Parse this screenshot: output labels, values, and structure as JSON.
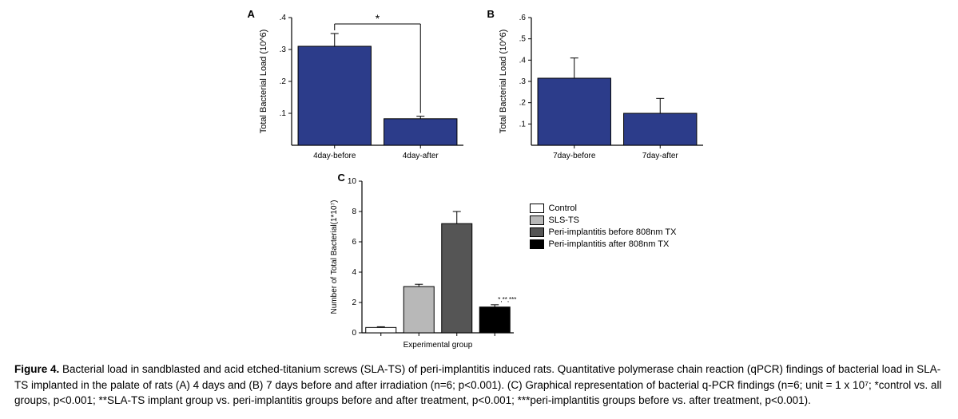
{
  "panelA": {
    "letter": "A",
    "type": "bar",
    "ylabel": "Total Bacterial Load (10^6)",
    "ylim": [
      0,
      0.4
    ],
    "yticks": [
      0.1,
      0.2,
      0.3,
      0.4
    ],
    "ytick_labels": [
      ".1",
      ".2",
      ".3",
      ".4"
    ],
    "categories": [
      "4day-before",
      "4day-after"
    ],
    "values": [
      0.31,
      0.083
    ],
    "errors": [
      0.04,
      0.008
    ],
    "bar_color": "#2c3c8a",
    "bar_stroke": "#000000",
    "axis_color": "#000000",
    "label_fontsize": 11,
    "tick_fontsize": 10,
    "sig_marker": "*",
    "sig_between_indices": [
      0,
      1
    ]
  },
  "panelB": {
    "letter": "B",
    "type": "bar",
    "ylabel": "Total Bacterial Load (10^6)",
    "ylim": [
      0,
      0.6
    ],
    "yticks": [
      0.1,
      0.2,
      0.3,
      0.4,
      0.5,
      0.6
    ],
    "ytick_labels": [
      ".1",
      ".2",
      ".3",
      ".4",
      ".5",
      ".6"
    ],
    "categories": [
      "7day-before",
      "7day-after"
    ],
    "values": [
      0.315,
      0.15
    ],
    "errors": [
      0.095,
      0.07
    ],
    "bar_color": "#2c3c8a",
    "bar_stroke": "#000000",
    "axis_color": "#000000",
    "label_fontsize": 11,
    "tick_fontsize": 10
  },
  "panelC": {
    "letter": "C",
    "type": "bar",
    "ylabel": "Number of Total Bacterial(1*10⁷)",
    "xlabel": "Experimental group",
    "ylim": [
      0,
      10
    ],
    "yticks": [
      0,
      2,
      4,
      6,
      8,
      10
    ],
    "ytick_labels": [
      "0",
      "2",
      "4",
      "6",
      "8",
      "10"
    ],
    "categories": [
      "Control",
      "SLS-TS",
      "Peri-implantitis before 808nm TX",
      "Peri-implantitis after 808nm TX"
    ],
    "values": [
      0.35,
      3.05,
      7.2,
      1.7
    ],
    "errors": [
      0.05,
      0.15,
      0.8,
      0.15
    ],
    "bar_colors": [
      "#ffffff",
      "#b8b8b8",
      "#555555",
      "#000000"
    ],
    "bar_stroke": "#000000",
    "axis_color": "#000000",
    "label_fontsize": 10,
    "tick_fontsize": 10,
    "sig_text": "*,**,***",
    "sig_on_index": 3,
    "legend": [
      {
        "label": "Control",
        "color": "#ffffff"
      },
      {
        "label": "SLS-TS",
        "color": "#b8b8b8"
      },
      {
        "label": "Peri-implantitis before 808nm TX",
        "color": "#555555"
      },
      {
        "label": "Peri-implantitis after 808nm TX",
        "color": "#000000"
      }
    ]
  },
  "caption": {
    "fignum": "Figure 4.",
    "text": " Bacterial load in sandblasted and acid etched-titanium screws (SLA-TS) of peri-implantitis induced rats. Quantitative polymerase chain reaction (qPCR) findings of bacterial load in SLA-TS implanted in the palate of rats (A) 4 days and (B) 7 days before and after irradiation (n=6; p<0.001). (C) Graphical representation of bacterial q-PCR findings (n=6; unit = 1 x 10⁷; *control vs. all groups, p<0.001; **SLA-TS implant group vs. peri-implantitis groups before and after treatment, p<0.001; ***peri-implantitis groups before vs. after treatment, p<0.001)."
  }
}
